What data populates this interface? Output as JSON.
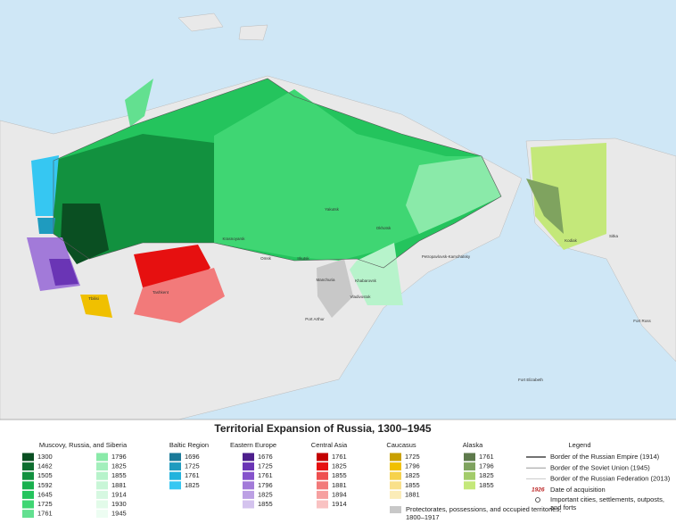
{
  "title": "Territorial Expansion of Russia, 1300–1945",
  "legend_groups": [
    {
      "name": "Muscovy, Russia, and Siberia",
      "items": [
        {
          "label": "1300",
          "color": "#0a4f22"
        },
        {
          "label": "1462",
          "color": "#0e6e30"
        },
        {
          "label": "1505",
          "color": "#12913f"
        },
        {
          "label": "1592",
          "color": "#19b04e"
        },
        {
          "label": "1645",
          "color": "#24c45d"
        },
        {
          "label": "1725",
          "color": "#3fd673"
        },
        {
          "label": "1761",
          "color": "#63e090"
        },
        {
          "label": "1796",
          "color": "#8aeaa9"
        },
        {
          "label": "1825",
          "color": "#a3efbc"
        },
        {
          "label": "1855",
          "color": "#b7f3cb"
        },
        {
          "label": "1881",
          "color": "#c8f6d7"
        },
        {
          "label": "1914",
          "color": "#d6f8e1"
        },
        {
          "label": "1930",
          "color": "#e2fbe9"
        },
        {
          "label": "1945",
          "color": "#edfdf2"
        }
      ]
    },
    {
      "name": "Baltic Region",
      "items": [
        {
          "label": "1696",
          "color": "#1a7a99"
        },
        {
          "label": "1725",
          "color": "#1f9bbf"
        },
        {
          "label": "1761",
          "color": "#22b3dd"
        },
        {
          "label": "1825",
          "color": "#36c7f2"
        }
      ]
    },
    {
      "name": "Eastern Europe",
      "items": [
        {
          "label": "1676",
          "color": "#4d1f8c"
        },
        {
          "label": "1725",
          "color": "#6a35b5"
        },
        {
          "label": "1761",
          "color": "#8653cc"
        },
        {
          "label": "1796",
          "color": "#a27ad9"
        },
        {
          "label": "1825",
          "color": "#bca0e4"
        },
        {
          "label": "1855",
          "color": "#d4c3ee"
        }
      ]
    },
    {
      "name": "Central Asia",
      "items": [
        {
          "label": "1761",
          "color": "#c30000"
        },
        {
          "label": "1825",
          "color": "#e61010"
        },
        {
          "label": "1855",
          "color": "#ee5050"
        },
        {
          "label": "1881",
          "color": "#f27a7a"
        },
        {
          "label": "1894",
          "color": "#f6a0a0"
        },
        {
          "label": "1914",
          "color": "#f9c2c2"
        }
      ]
    },
    {
      "name": "Caucasus",
      "items": [
        {
          "label": "1725",
          "color": "#c9a000"
        },
        {
          "label": "1796",
          "color": "#f0c000"
        },
        {
          "label": "1825",
          "color": "#f6d24c"
        },
        {
          "label": "1855",
          "color": "#f9e08a"
        },
        {
          "label": "1881",
          "color": "#fbecb8"
        }
      ]
    },
    {
      "name": "Alaska",
      "items": [
        {
          "label": "1761",
          "color": "#5e7a4c"
        },
        {
          "label": "1796",
          "color": "#7fa35f"
        },
        {
          "label": "1825",
          "color": "#a3cc6a"
        },
        {
          "label": "1855",
          "color": "#c4e87a"
        }
      ]
    }
  ],
  "protectorates": {
    "label": "Protectorates, possessions, and occupied territories, 1800–1917",
    "color": "#c8c8c8"
  },
  "legend": {
    "title": "Legend",
    "borders": [
      "Border of the Russian Empire (1914)",
      "Border of the Soviet Union (1945)",
      "Border of the Russian Federation (2013)"
    ],
    "date_sample": "1926",
    "date_text": "Date of acquisition",
    "cities_text": "Important cities, settlements, outposts, and forts"
  },
  "map_labels": [
    "Yakutsk",
    "Okhotsk",
    "Krasnoyarsk",
    "Omsk",
    "Irkutsk",
    "Khabarovsk",
    "Vladivostok",
    "Manchuria",
    "Petropavlovsk-Kamchatsky",
    "Tashkent",
    "Tbilisi",
    "Kodiak",
    "Sitka",
    "Fort Ross",
    "Fort Elizabeth",
    "Port Arthur"
  ]
}
